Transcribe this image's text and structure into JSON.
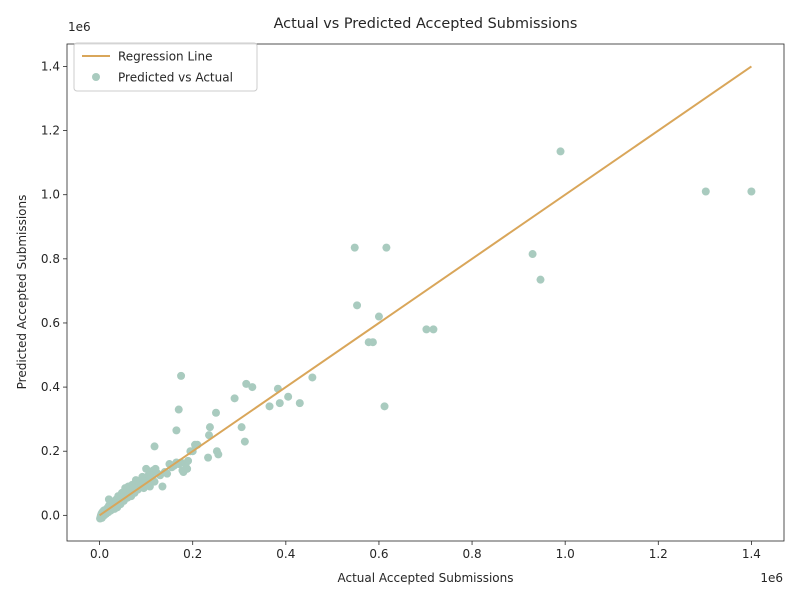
{
  "chart_data": {
    "type": "scatter",
    "title": "Actual vs Predicted Accepted Submissions",
    "xlabel": "Actual Accepted Submissions",
    "ylabel": "Predicted Accepted Submissions",
    "x_offset_label": "1e6",
    "y_offset_label": "1e6",
    "xlim": [
      -70000,
      1470000
    ],
    "ylim": [
      -80000,
      1470000
    ],
    "x_ticks": [
      0,
      200000,
      400000,
      600000,
      800000,
      1000000,
      1200000,
      1400000
    ],
    "x_tick_labels": [
      "0.0",
      "0.2",
      "0.4",
      "0.6",
      "0.8",
      "1.0",
      "1.2",
      "1.4"
    ],
    "y_ticks": [
      0,
      200000,
      400000,
      600000,
      800000,
      1000000,
      1200000,
      1400000
    ],
    "y_tick_labels": [
      "0.0",
      "0.2",
      "0.4",
      "0.6",
      "0.8",
      "1.0",
      "1.2",
      "1.4"
    ],
    "grid": false,
    "legend": {
      "position": "upper-left",
      "entries": [
        "Regression Line",
        "Predicted vs Actual"
      ]
    },
    "colors": {
      "scatter": "#a9cbbf",
      "line": "#d9a65a",
      "axis": "#262626"
    },
    "series": [
      {
        "name": "Regression Line",
        "kind": "line",
        "x": [
          0,
          1400000
        ],
        "y": [
          0,
          1400000
        ]
      },
      {
        "name": "Predicted vs Actual",
        "kind": "scatter",
        "x": [
          1000,
          2000,
          3000,
          4000,
          5000,
          6000,
          7000,
          8000,
          9000,
          10000,
          12000,
          14000,
          15000,
          17000,
          18000,
          19000,
          20000,
          22000,
          24000,
          25000,
          27000,
          28000,
          30000,
          32000,
          33000,
          35000,
          36000,
          38000,
          40000,
          42000,
          44000,
          45000,
          48000,
          50000,
          52000,
          55000,
          56000,
          58000,
          60000,
          62000,
          65000,
          66000,
          68000,
          70000,
          72000,
          75000,
          78000,
          80000,
          82000,
          85000,
          88000,
          90000,
          92000,
          95000,
          98000,
          100000,
          102000,
          105000,
          108000,
          110000,
          112000,
          115000,
          118000,
          120000,
          125000,
          130000,
          135000,
          140000,
          145000,
          150000,
          155000,
          160000,
          165000,
          170000,
          175000,
          178000,
          180000,
          185000,
          188000,
          190000,
          195000,
          200000,
          205000,
          210000,
          233000,
          235000,
          237000,
          250000,
          252000,
          255000,
          290000,
          305000,
          312000,
          315000,
          328000,
          365000,
          383000,
          387000,
          405000,
          430000,
          457000,
          548000,
          553000,
          578000,
          587000,
          600000,
          612000,
          616000,
          702000,
          717000,
          930000,
          947000,
          990000,
          1302000,
          1400000,
          118000,
          170000,
          175000,
          165000,
          20000
        ],
        "y": [
          -10000,
          -5000,
          0,
          5000,
          -8000,
          10000,
          0,
          5000,
          15000,
          0,
          10000,
          5000,
          20000,
          15000,
          25000,
          10000,
          30000,
          20000,
          15000,
          35000,
          25000,
          30000,
          40000,
          20000,
          45000,
          30000,
          50000,
          25000,
          60000,
          40000,
          55000,
          35000,
          70000,
          50000,
          45000,
          85000,
          60000,
          75000,
          55000,
          90000,
          70000,
          80000,
          60000,
          95000,
          85000,
          70000,
          110000,
          90000,
          80000,
          100000,
          105000,
          95000,
          120000,
          85000,
          110000,
          145000,
          100000,
          125000,
          90000,
          130000,
          115000,
          140000,
          105000,
          145000,
          130000,
          125000,
          90000,
          135000,
          130000,
          160000,
          150000,
          155000,
          165000,
          160000,
          165000,
          140000,
          135000,
          160000,
          145000,
          170000,
          200000,
          200000,
          220000,
          220000,
          180000,
          250000,
          275000,
          320000,
          200000,
          190000,
          365000,
          275000,
          230000,
          410000,
          400000,
          340000,
          395000,
          350000,
          370000,
          350000,
          430000,
          835000,
          655000,
          540000,
          540000,
          620000,
          340000,
          835000,
          580000,
          580000,
          815000,
          735000,
          1135000,
          1010000,
          1010000,
          215000,
          330000,
          435000,
          265000,
          50000
        ]
      }
    ]
  }
}
